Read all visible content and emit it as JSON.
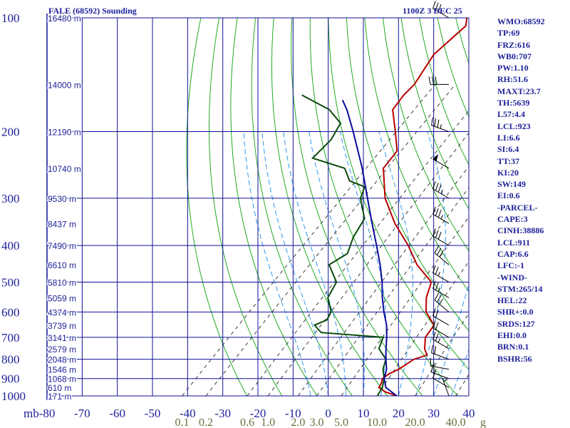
{
  "chart_data": {
    "type": "line",
    "title": "FALE (68592) Sounding",
    "timestamp": "1100Z  3 DEC 25",
    "y_unit_label": "mb",
    "pressure_ticks": [
      100,
      200,
      300,
      400,
      500,
      600,
      700,
      800,
      900,
      1000
    ],
    "temperature_ticks": [
      -80,
      -70,
      -60,
      -50,
      -40,
      -30,
      -20,
      -10,
      0,
      10,
      20,
      30,
      40
    ],
    "xlim": [
      -80,
      40
    ],
    "ylim": [
      1000,
      100
    ],
    "y_scale": "log",
    "mixing_ratio_labels": [
      "0.1",
      "0.2",
      "0.6",
      "1.0",
      "2.0",
      "3.0",
      "5.0",
      "10.0",
      "20.0",
      "40.0"
    ],
    "mixing_ratio_unit": "g",
    "height_labels": [
      {
        "p": 100,
        "label": "16480 m"
      },
      {
        "p": 150,
        "label": "14000 m"
      },
      {
        "p": 200,
        "label": "12190 m"
      },
      {
        "p": 250,
        "label": "10740 m"
      },
      {
        "p": 300,
        "label": "9530 m"
      },
      {
        "p": 350,
        "label": "8437 m"
      },
      {
        "p": 400,
        "label": "7490 m"
      },
      {
        "p": 450,
        "label": "6610 m"
      },
      {
        "p": 500,
        "label": "5810 m"
      },
      {
        "p": 550,
        "label": "5059 m"
      },
      {
        "p": 600,
        "label": "4374 m"
      },
      {
        "p": 650,
        "label": "3739 m"
      },
      {
        "p": 700,
        "label": "3141 m"
      },
      {
        "p": 750,
        "label": "2579 m"
      },
      {
        "p": 800,
        "label": "2048 m"
      },
      {
        "p": 850,
        "label": "1546 m"
      },
      {
        "p": 900,
        "label": "1068 m"
      },
      {
        "p": 950,
        "label": "610 m"
      },
      {
        "p": 1000,
        "label": "171 m"
      }
    ],
    "series": [
      {
        "name": "temperature",
        "color": "#b80000",
        "points": [
          [
            1000,
            19.5
          ],
          [
            975,
            15
          ],
          [
            950,
            12
          ],
          [
            925,
            11.5
          ],
          [
            900,
            10.5
          ],
          [
            875,
            11
          ],
          [
            850,
            12.5
          ],
          [
            800,
            14
          ],
          [
            780,
            16.5
          ],
          [
            750,
            14
          ],
          [
            700,
            11
          ],
          [
            650,
            10
          ],
          [
            600,
            4
          ],
          [
            550,
            0
          ],
          [
            500,
            -3
          ],
          [
            450,
            -12
          ],
          [
            400,
            -20
          ],
          [
            350,
            -30
          ],
          [
            300,
            -40
          ],
          [
            250,
            -49
          ],
          [
            225,
            -50
          ],
          [
            200,
            -56
          ],
          [
            175,
            -63
          ],
          [
            160,
            -64
          ],
          [
            150,
            -64
          ],
          [
            125,
            -67
          ],
          [
            105,
            -66
          ],
          [
            100,
            -68
          ]
        ]
      },
      {
        "name": "dewpoint",
        "color": "#0a4a0a",
        "points": [
          [
            1000,
            14
          ],
          [
            950,
            13
          ],
          [
            900,
            11
          ],
          [
            850,
            8
          ],
          [
            800,
            6
          ],
          [
            750,
            1
          ],
          [
            700,
            -1
          ],
          [
            680,
            -20
          ],
          [
            650,
            -24
          ],
          [
            630,
            -22
          ],
          [
            600,
            -23
          ],
          [
            550,
            -28
          ],
          [
            500,
            -30
          ],
          [
            450,
            -37
          ],
          [
            420,
            -35
          ],
          [
            380,
            -38
          ],
          [
            340,
            -40
          ],
          [
            300,
            -47
          ],
          [
            280,
            -49
          ],
          [
            270,
            -55
          ],
          [
            250,
            -60
          ],
          [
            235,
            -72
          ],
          [
            210,
            -72
          ],
          [
            190,
            -74
          ],
          [
            175,
            -81
          ],
          [
            160,
            -93
          ]
        ]
      },
      {
        "name": "parcel",
        "color": "#0a0a9a",
        "points": [
          [
            1000,
            19.5
          ],
          [
            950,
            14
          ],
          [
            900,
            11
          ],
          [
            850,
            9
          ],
          [
            800,
            6
          ],
          [
            750,
            3
          ],
          [
            700,
            0
          ],
          [
            650,
            -3.5
          ],
          [
            600,
            -8
          ],
          [
            550,
            -12.5
          ],
          [
            500,
            -17
          ],
          [
            450,
            -22.5
          ],
          [
            400,
            -29
          ],
          [
            350,
            -36.5
          ],
          [
            300,
            -45
          ],
          [
            250,
            -55
          ],
          [
            200,
            -68
          ],
          [
            175,
            -76
          ],
          [
            165,
            -80
          ]
        ]
      }
    ],
    "wind_barbs": [
      {
        "p": 1000,
        "dir": 340,
        "spd": 5
      },
      {
        "p": 950,
        "dir": 300,
        "spd": 10
      },
      {
        "p": 900,
        "dir": 290,
        "spd": 15
      },
      {
        "p": 850,
        "dir": 280,
        "spd": 15
      },
      {
        "p": 800,
        "dir": 290,
        "spd": 20
      },
      {
        "p": 750,
        "dir": 300,
        "spd": 25
      },
      {
        "p": 700,
        "dir": 300,
        "spd": 20
      },
      {
        "p": 650,
        "dir": 300,
        "spd": 20
      },
      {
        "p": 600,
        "dir": 310,
        "spd": 25
      },
      {
        "p": 550,
        "dir": 300,
        "spd": 25
      },
      {
        "p": 500,
        "dir": 300,
        "spd": 25
      },
      {
        "p": 450,
        "dir": 310,
        "spd": 30
      },
      {
        "p": 400,
        "dir": 300,
        "spd": 30
      },
      {
        "p": 350,
        "dir": 300,
        "spd": 35
      },
      {
        "p": 300,
        "dir": 300,
        "spd": 35
      },
      {
        "p": 250,
        "dir": 300,
        "spd": 50
      },
      {
        "p": 200,
        "dir": 290,
        "spd": 35
      },
      {
        "p": 150,
        "dir": 270,
        "spd": 30
      },
      {
        "p": 100,
        "dir": 300,
        "spd": 30
      }
    ]
  },
  "indices": [
    "WMO:68592",
    "TP:69",
    "FRZ:616",
    "WB0:707",
    "PW:1.10",
    "RH:51.6",
    "MAXT:23.7",
    "TH:5639",
    "L57:4.4",
    "LCL:923",
    "LI:6.6",
    "SI:6.4",
    "TT:37",
    "KI:20",
    "SW:149",
    "EI:0.6",
    "-PARCEL-",
    "CAPE:3",
    "CINH:38886",
    "LCL:911",
    "CAP:6.6",
    "LFC:-1",
    "-WIND-",
    "STM:265/14",
    "HEL:22",
    "SHR+:0.0",
    "SRDS:127",
    "EHI:0.0",
    "BRN:0.1",
    "BSHR:56"
  ],
  "colors": {
    "grid": "#10109a",
    "dry_adiabat": "#22aa22",
    "moist_adiabat": "#3399ee",
    "mixing_ratio": "#3a3a3a",
    "mixing_label": "#6b6b3a",
    "label_blue": "#1c1f99"
  }
}
